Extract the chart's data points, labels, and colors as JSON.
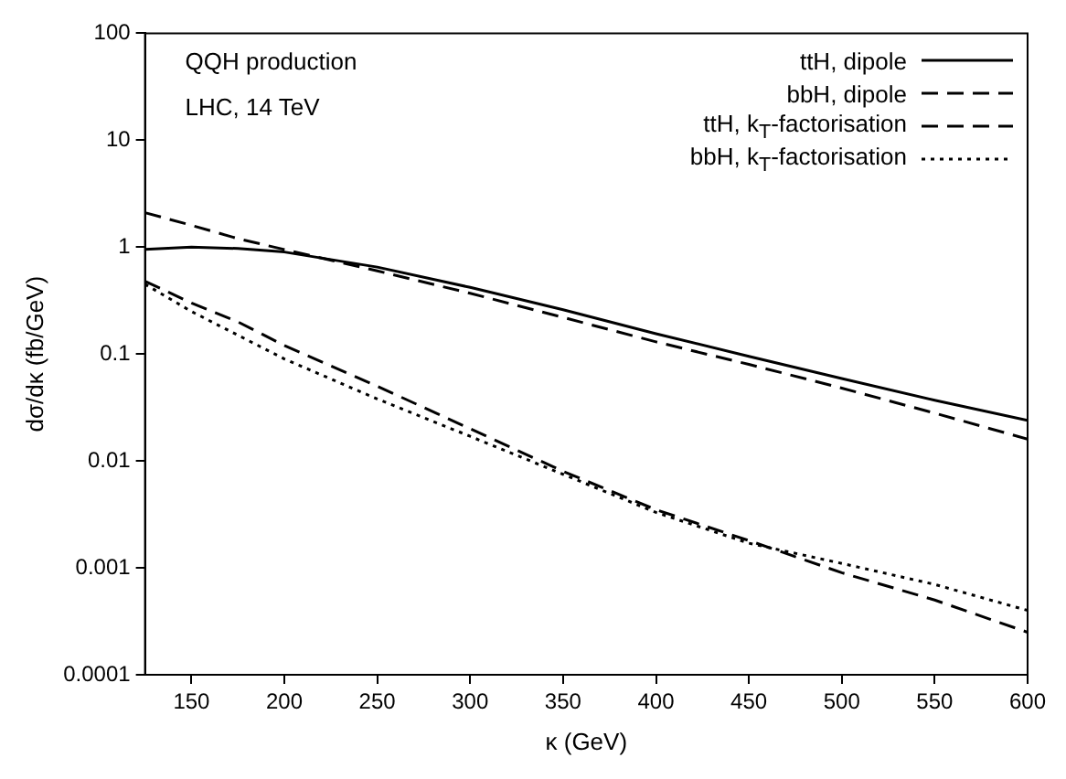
{
  "chart_data": {
    "type": "line",
    "xlabel": "κ (GeV)",
    "ylabel": "dσ/dκ (fb/GeV)",
    "annotations": [
      "QQH production",
      "LHC, 14 TeV"
    ],
    "x": [
      125,
      150,
      175,
      200,
      250,
      300,
      350,
      400,
      450,
      500,
      550,
      600
    ],
    "series": [
      {
        "name": "ttH, dipole",
        "color": "#000000",
        "line_style": "solid",
        "values": [
          0.95,
          1.0,
          0.97,
          0.9,
          0.65,
          0.42,
          0.26,
          0.155,
          0.095,
          0.059,
          0.037,
          0.024
        ]
      },
      {
        "name": "bbH, dipole",
        "color": "#000000",
        "line_style": "dashed",
        "values": [
          0.48,
          0.3,
          0.2,
          0.12,
          0.05,
          0.02,
          0.008,
          0.0035,
          0.0018,
          0.0009,
          0.0005,
          0.00025
        ]
      },
      {
        "name": "ttH, k$_{T}$-factorisation",
        "color": "#000000",
        "line_style": "dashed",
        "values": [
          2.1,
          1.6,
          1.2,
          0.95,
          0.6,
          0.37,
          0.22,
          0.13,
          0.08,
          0.048,
          0.028,
          0.016
        ]
      },
      {
        "name": "bbH, k$_{T}$-factorisation",
        "color": "#000000",
        "line_style": "dotted",
        "values": [
          0.45,
          0.25,
          0.15,
          0.09,
          0.038,
          0.017,
          0.0075,
          0.0033,
          0.0017,
          0.0011,
          0.0007,
          0.0004
        ]
      }
    ],
    "xlim": [
      125,
      600
    ],
    "xticks": [
      150,
      200,
      250,
      300,
      350,
      400,
      450,
      500,
      550,
      600
    ],
    "ylim": [
      0.0001,
      100
    ],
    "yticks": [
      0.0001,
      0.001,
      0.01,
      0.1,
      1,
      10,
      100
    ],
    "log": "y",
    "grid": false,
    "legend": "top right",
    "marker": "none"
  }
}
